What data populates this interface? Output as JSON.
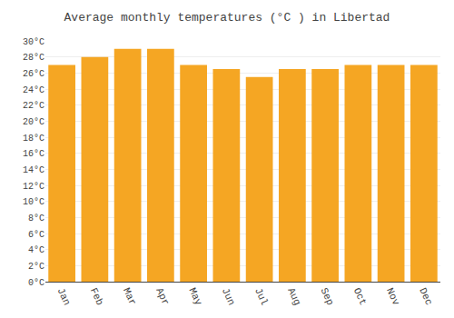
{
  "chart_data": {
    "type": "bar",
    "title": "Average monthly temperatures (°C ) in Libertad",
    "categories": [
      "Jan",
      "Feb",
      "Mar",
      "Apr",
      "May",
      "Jun",
      "Jul",
      "Aug",
      "Sep",
      "Oct",
      "Nov",
      "Dec"
    ],
    "values": [
      27,
      28,
      29,
      29,
      27,
      26.5,
      25.5,
      26.5,
      26.5,
      27,
      27,
      27
    ],
    "color": "#F5A623",
    "ylim": [
      0,
      30
    ],
    "yticks": [
      {
        "value": 0,
        "label": "0°C"
      },
      {
        "value": 2,
        "label": "2°C"
      },
      {
        "value": 4,
        "label": "4°C"
      },
      {
        "value": 6,
        "label": "6°C"
      },
      {
        "value": 8,
        "label": "8°C"
      },
      {
        "value": 10,
        "label": "10°C"
      },
      {
        "value": 12,
        "label": "12°C"
      },
      {
        "value": 14,
        "label": "14°C"
      },
      {
        "value": 16,
        "label": "16°C"
      },
      {
        "value": 18,
        "label": "18°C"
      },
      {
        "value": 20,
        "label": "20°C"
      },
      {
        "value": 22,
        "label": "22°C"
      },
      {
        "value": 24,
        "label": "24°C"
      },
      {
        "value": 26,
        "label": "26°C"
      },
      {
        "value": 28,
        "label": "28°C"
      },
      {
        "value": 30,
        "label": "30°C"
      }
    ],
    "grid": true
  }
}
